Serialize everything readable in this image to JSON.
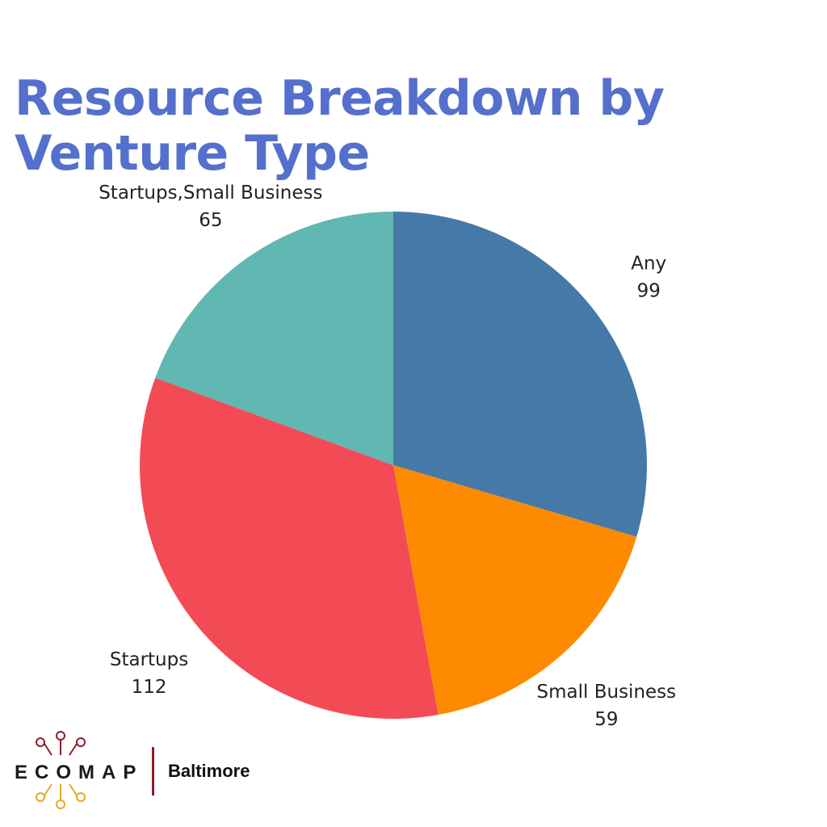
{
  "title_lines": [
    "Resource Breakdown by",
    "Venture Type"
  ],
  "colors": {
    "title": "#5470cc",
    "brand_red": "#8b1e2e",
    "brand_gold": "#e6a823"
  },
  "chart_data": {
    "type": "pie",
    "title": "Resource Breakdown by Venture Type",
    "start_angle_deg": 0,
    "direction": "clockwise",
    "slices": [
      {
        "label": "Any",
        "value": 99,
        "color": "#4579a8"
      },
      {
        "label": "Small Business",
        "value": 59,
        "color": "#fd8a01"
      },
      {
        "label": "Startups",
        "value": 112,
        "color": "#f34b56"
      },
      {
        "label": "Startups,Small Business",
        "value": 65,
        "color": "#61b7b2"
      }
    ]
  },
  "logo": {
    "wordmark": "ECOMAP",
    "city": "Baltimore",
    "icon": "network-nodes-icon"
  }
}
